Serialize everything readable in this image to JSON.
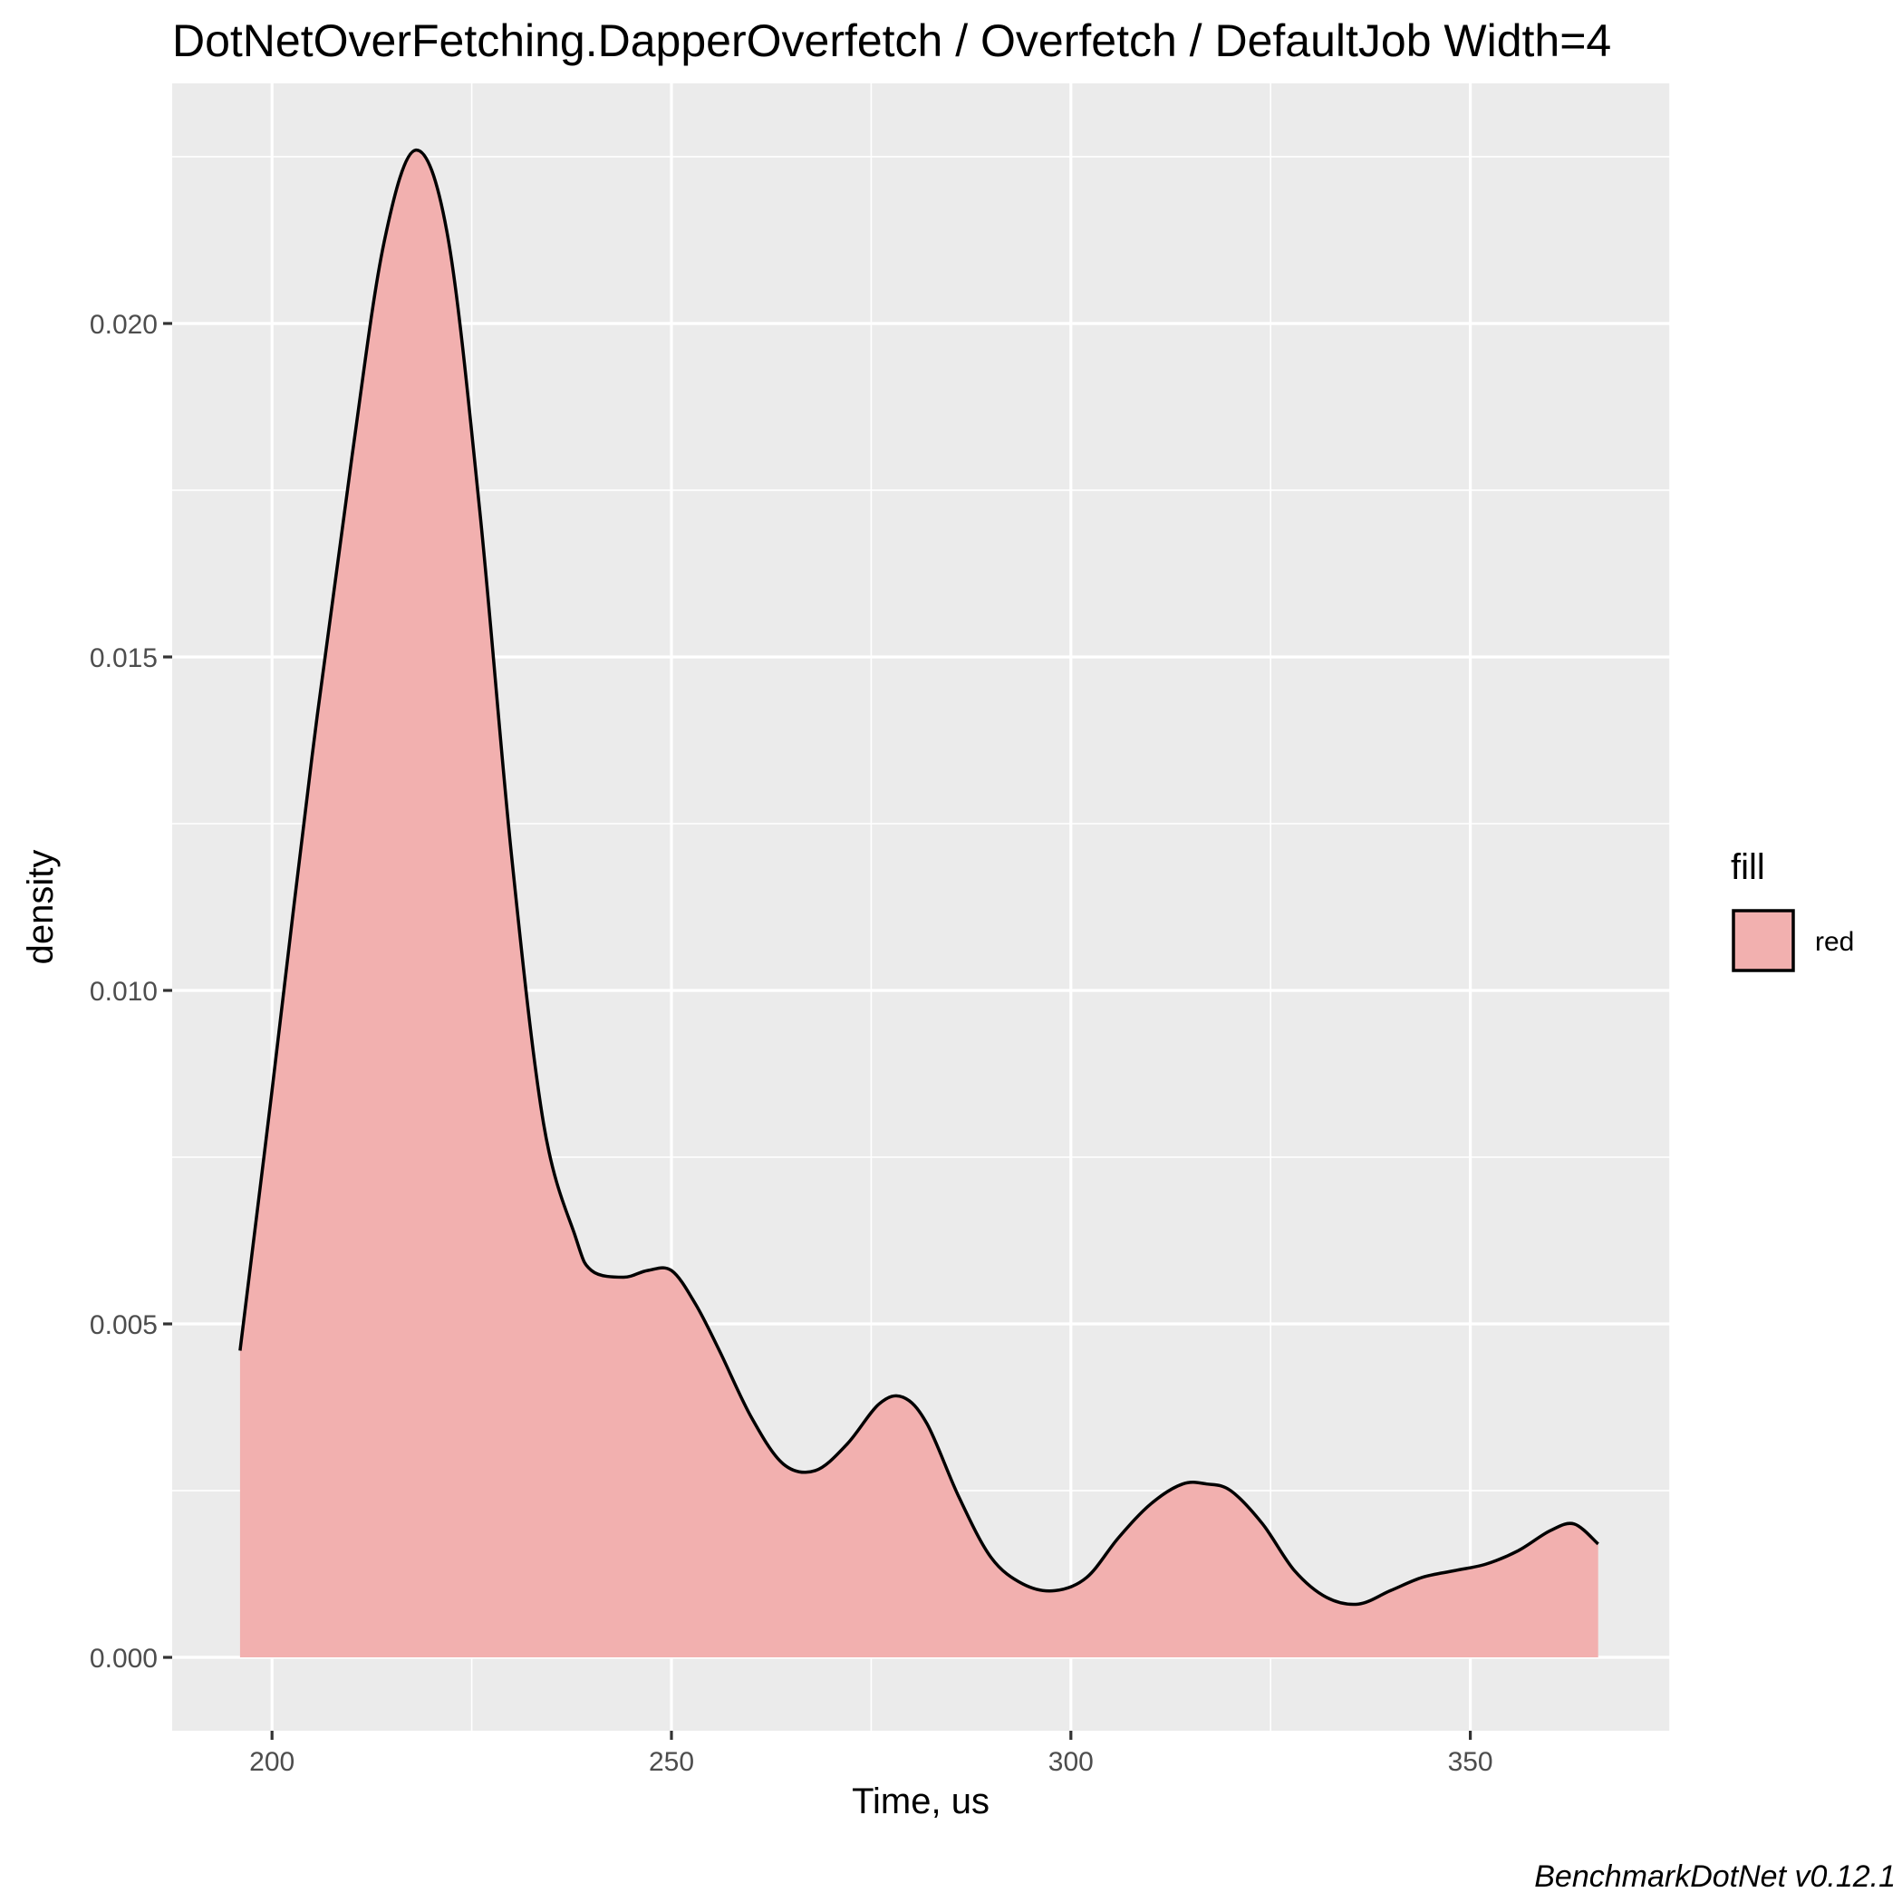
{
  "chart_data": {
    "type": "area",
    "title": "DotNetOverFetching.DapperOverfetch / Overfetch / DefaultJob Width=4",
    "xlabel": "Time, us",
    "ylabel": "density",
    "xlim": [
      187.5,
      375
    ],
    "ylim": [
      -0.0011,
      0.0236
    ],
    "x_ticks": [
      200,
      250,
      300,
      350
    ],
    "x_tick_labels": [
      "200",
      "250",
      "300",
      "350"
    ],
    "y_ticks": [
      0.0,
      0.005,
      0.01,
      0.015,
      0.02
    ],
    "y_tick_labels": [
      "0.000",
      "0.005",
      "0.010",
      "0.015",
      "0.020"
    ],
    "grid": true,
    "legend": {
      "title": "fill",
      "entries": [
        "red"
      ],
      "placement": "right"
    },
    "fill_color": "#f2b0af",
    "line_color": "#000000",
    "panel_color": "#ebebeb",
    "series": [
      {
        "x": [
          196,
          200,
          205,
          210,
          214,
          218,
          222,
          226,
          230,
          234,
          238,
          240,
          244,
          247,
          250,
          253,
          256,
          260,
          264,
          268,
          272,
          276,
          279,
          282,
          286,
          290,
          294,
          298,
          302,
          306,
          310,
          314,
          317,
          320,
          324,
          328,
          332,
          336,
          340,
          344,
          348,
          352,
          356,
          360,
          363,
          366
        ],
        "values": [
          0.0046,
          0.0085,
          0.0135,
          0.018,
          0.0212,
          0.0226,
          0.0213,
          0.0172,
          0.012,
          0.008,
          0.0063,
          0.0058,
          0.0057,
          0.0058,
          0.0058,
          0.0053,
          0.0046,
          0.0036,
          0.0029,
          0.0028,
          0.0032,
          0.0038,
          0.0039,
          0.0035,
          0.0024,
          0.0015,
          0.0011,
          0.001,
          0.0012,
          0.0018,
          0.0023,
          0.0026,
          0.0026,
          0.0025,
          0.002,
          0.0013,
          0.0009,
          0.0008,
          0.001,
          0.0012,
          0.0013,
          0.0014,
          0.0016,
          0.0019,
          0.002,
          0.0017
        ]
      }
    ]
  },
  "caption": "BenchmarkDotNet v0.12.1"
}
